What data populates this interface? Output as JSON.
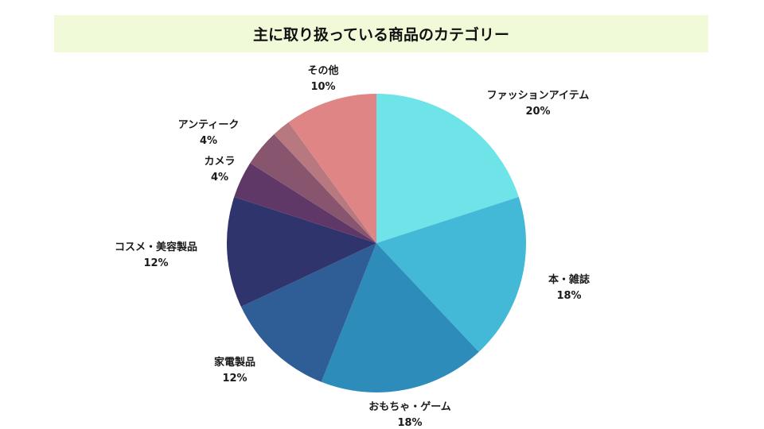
{
  "chart_data": {
    "type": "pie",
    "title": "主に取り扱っている商品のカテゴリー",
    "slices": [
      {
        "label": "ファッションアイテム",
        "value": 20,
        "display": "20%",
        "color": "#6ee4e8"
      },
      {
        "label": "本・雑誌",
        "value": 18,
        "display": "18%",
        "color": "#43b9d7"
      },
      {
        "label": "おもちゃ・ゲーム",
        "value": 18,
        "display": "18%",
        "color": "#2d8cba"
      },
      {
        "label": "家電製品",
        "value": 12,
        "display": "12%",
        "color": "#2e5e95"
      },
      {
        "label": "コスメ・美容製品",
        "value": 12,
        "display": "12%",
        "color": "#2f346d"
      },
      {
        "label": "カメラ",
        "value": 4,
        "display": "4%",
        "color": "#5f3867"
      },
      {
        "label": "アンティーク",
        "value": 4,
        "display": "4%",
        "color": "#88556f"
      },
      {
        "label": "",
        "value": 2,
        "display": "",
        "color": "#b7787f"
      },
      {
        "label": "その他",
        "value": 10,
        "display": "10%",
        "color": "#e08585"
      }
    ]
  }
}
